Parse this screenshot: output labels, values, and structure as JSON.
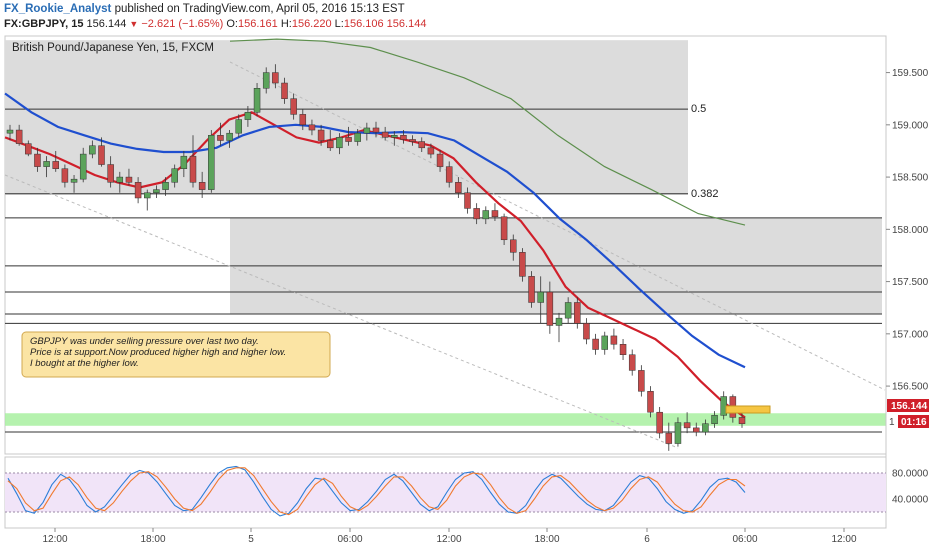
{
  "header": {
    "author": "FX_Rookie_Analyst",
    "published": "published on TradingView.com, April 05, 2016 15:13 EST",
    "symbol": "FX:GBPJPY, 15",
    "last": "156.144",
    "change": "−2.621 (−1.65%)",
    "o_label": "O:",
    "o": "156.161",
    "h_label": "H:",
    "h": "156.220",
    "l_label": "L:",
    "l": "156.106",
    "c": "156.144"
  },
  "chart_data": [
    {
      "type": "line",
      "title": "British Pound/Japanese Yen, 15, FXCM",
      "y_axis": {
        "range": [
          155.85,
          159.85
        ],
        "ticks": [
          "159.500",
          "159.000",
          "158.500",
          "158.000",
          "157.500",
          "157.000",
          "156.500"
        ],
        "tick_values": [
          159.5,
          159.0,
          158.5,
          158.0,
          157.5,
          157.0,
          156.5
        ]
      },
      "x_axis": {
        "ticks": [
          "12:00",
          "18:00",
          "5",
          "06:00",
          "12:00",
          "18:00",
          "6",
          "06:00",
          "12:00"
        ]
      },
      "last_price_label": "156.144",
      "countdown_label": "01:16",
      "partial_axis_label": "1",
      "fib_levels": [
        {
          "label": "0.5",
          "value": 159.15
        },
        {
          "label": "0.382",
          "value": 158.34
        }
      ],
      "zones": [
        {
          "top": 159.81,
          "bottom": 158.33
        },
        {
          "top": 158.11,
          "bottom": 157.19
        },
        {
          "top": 157.65,
          "bottom": 157.4
        }
      ],
      "support_band": {
        "top": 156.24,
        "bottom": 156.12
      },
      "horizontal_levels": [
        159.15,
        158.34,
        158.11,
        157.65,
        157.4,
        157.19,
        157.1,
        156.06
      ],
      "annotation": [
        "GBPJPY was under selling pressure over last two day.",
        "Price is at support.Now produced higher high and higher low.",
        "I bought at the higher low."
      ],
      "colors": {
        "candle_up": "#5ba35b",
        "candle_down": "#c84a4a",
        "ma_fast": "#d01f2a",
        "ma_slow": "#1f4fcf",
        "ma_long": "#5d8f4d",
        "zone": "#dcdcdc",
        "support": "#a8f0a0",
        "annotation_bg": "#fbe4a4"
      },
      "series": [
        {
          "color": "#d01f2a",
          "values": [
            158.88,
            158.8,
            158.72,
            158.62,
            158.52,
            158.45,
            158.4,
            158.45,
            158.62,
            158.85,
            159.05,
            159.12,
            159.0,
            158.88,
            158.83,
            158.88,
            158.95,
            158.9,
            158.85,
            158.8,
            158.68,
            158.45,
            158.25,
            158.08,
            157.8,
            157.45,
            157.25,
            157.15,
            157.05,
            156.95,
            156.78,
            156.55,
            156.35,
            156.2
          ]
        },
        {
          "color": "#1f4fcf",
          "values": [
            159.3,
            159.12,
            158.98,
            158.9,
            158.82,
            158.77,
            158.74,
            158.74,
            158.78,
            158.9,
            158.98,
            159.0,
            158.98,
            158.93,
            158.92,
            158.93,
            158.92,
            158.85,
            158.7,
            158.55,
            158.35,
            158.1,
            157.9,
            157.67,
            157.43,
            157.2,
            156.98,
            156.8,
            156.68
          ]
        },
        {
          "color": "#5d8f4d",
          "values": [
            159.8,
            159.82,
            159.8,
            159.74,
            159.6,
            159.45,
            159.25,
            158.9,
            158.6,
            158.38,
            158.15,
            158.04
          ]
        }
      ],
      "candles": [
        [
          158.92,
          159.0,
          158.85,
          158.95
        ],
        [
          158.95,
          159.0,
          158.8,
          158.82
        ],
        [
          158.82,
          158.85,
          158.7,
          158.72
        ],
        [
          158.72,
          158.78,
          158.55,
          158.6
        ],
        [
          158.6,
          158.7,
          158.5,
          158.65
        ],
        [
          158.65,
          158.75,
          158.55,
          158.58
        ],
        [
          158.58,
          158.62,
          158.4,
          158.45
        ],
        [
          158.45,
          158.52,
          158.35,
          158.48
        ],
        [
          158.48,
          158.78,
          158.45,
          158.72
        ],
        [
          158.72,
          158.85,
          158.68,
          158.8
        ],
        [
          158.8,
          158.88,
          158.6,
          158.62
        ],
        [
          158.62,
          158.7,
          158.4,
          158.45
        ],
        [
          158.45,
          158.55,
          158.35,
          158.5
        ],
        [
          158.5,
          158.58,
          158.42,
          158.45
        ],
        [
          158.45,
          158.5,
          158.25,
          158.3
        ],
        [
          158.3,
          158.38,
          158.18,
          158.35
        ],
        [
          158.35,
          158.42,
          158.3,
          158.38
        ],
        [
          158.38,
          158.5,
          158.32,
          158.45
        ],
        [
          158.45,
          158.62,
          158.4,
          158.58
        ],
        [
          158.58,
          158.75,
          158.5,
          158.7
        ],
        [
          158.7,
          158.9,
          158.4,
          158.45
        ],
        [
          158.45,
          158.55,
          158.3,
          158.38
        ],
        [
          158.38,
          158.95,
          158.35,
          158.9
        ],
        [
          158.9,
          159.02,
          158.8,
          158.85
        ],
        [
          158.85,
          158.95,
          158.78,
          158.92
        ],
        [
          158.92,
          159.1,
          158.88,
          159.05
        ],
        [
          159.05,
          159.18,
          158.98,
          159.12
        ],
        [
          159.12,
          159.4,
          159.08,
          159.35
        ],
        [
          159.35,
          159.55,
          159.3,
          159.5
        ],
        [
          159.5,
          159.58,
          159.35,
          159.4
        ],
        [
          159.4,
          159.45,
          159.2,
          159.25
        ],
        [
          159.25,
          159.3,
          159.05,
          159.1
        ],
        [
          159.1,
          159.15,
          158.95,
          159.0
        ],
        [
          159.0,
          159.05,
          158.9,
          158.95
        ],
        [
          158.95,
          159.0,
          158.8,
          158.85
        ],
        [
          158.85,
          158.95,
          158.75,
          158.78
        ],
        [
          158.78,
          158.92,
          158.72,
          158.88
        ],
        [
          158.88,
          158.98,
          158.8,
          158.84
        ],
        [
          158.84,
          158.96,
          158.8,
          158.92
        ],
        [
          158.92,
          159.02,
          158.85,
          158.97
        ],
        [
          158.97,
          159.03,
          158.88,
          158.93
        ],
        [
          158.93,
          158.98,
          158.85,
          158.88
        ],
        [
          158.88,
          158.94,
          158.8,
          158.9
        ],
        [
          158.9,
          158.95,
          158.82,
          158.86
        ],
        [
          158.86,
          158.9,
          158.8,
          158.84
        ],
        [
          158.84,
          158.88,
          158.74,
          158.78
        ],
        [
          158.78,
          158.82,
          158.68,
          158.72
        ],
        [
          158.72,
          158.76,
          158.55,
          158.6
        ],
        [
          158.6,
          158.65,
          158.4,
          158.45
        ],
        [
          158.45,
          158.5,
          158.3,
          158.35
        ],
        [
          158.35,
          158.4,
          158.15,
          158.2
        ],
        [
          158.2,
          158.25,
          158.05,
          158.1
        ],
        [
          158.1,
          158.22,
          158.05,
          158.18
        ],
        [
          158.18,
          158.25,
          158.08,
          158.12
        ],
        [
          158.12,
          158.15,
          157.85,
          157.9
        ],
        [
          157.9,
          157.95,
          157.7,
          157.78
        ],
        [
          157.78,
          157.82,
          157.5,
          157.55
        ],
        [
          157.55,
          157.6,
          157.25,
          157.3
        ],
        [
          157.3,
          157.55,
          157.1,
          157.4
        ],
        [
          157.4,
          157.5,
          157.0,
          157.08
        ],
        [
          157.08,
          157.2,
          156.92,
          157.15
        ],
        [
          157.15,
          157.35,
          157.1,
          157.3
        ],
        [
          157.3,
          157.35,
          157.05,
          157.1
        ],
        [
          157.1,
          157.15,
          156.9,
          156.95
        ],
        [
          156.95,
          157.0,
          156.8,
          156.85
        ],
        [
          156.85,
          157.02,
          156.8,
          156.98
        ],
        [
          156.98,
          157.05,
          156.85,
          156.9
        ],
        [
          156.9,
          156.95,
          156.75,
          156.8
        ],
        [
          156.8,
          156.85,
          156.6,
          156.65
        ],
        [
          156.65,
          156.7,
          156.4,
          156.45
        ],
        [
          156.45,
          156.5,
          156.2,
          156.25
        ],
        [
          156.25,
          156.3,
          156.0,
          156.05
        ],
        [
          156.05,
          156.15,
          155.88,
          155.95
        ],
        [
          155.95,
          156.2,
          155.92,
          156.15
        ],
        [
          156.15,
          156.25,
          156.05,
          156.1
        ],
        [
          156.1,
          156.15,
          156.02,
          156.06
        ],
        [
          156.06,
          156.18,
          156.03,
          156.14
        ],
        [
          156.14,
          156.26,
          156.1,
          156.22
        ],
        [
          156.22,
          156.45,
          156.18,
          156.4
        ],
        [
          156.4,
          156.42,
          156.15,
          156.2
        ],
        [
          156.2,
          156.24,
          156.1,
          156.14
        ]
      ]
    },
    {
      "type": "line",
      "y_axis": {
        "ticks": [
          "80.0000",
          "40.0000"
        ],
        "tick_values": [
          80,
          40
        ],
        "range": [
          0,
          100
        ]
      },
      "band": [
        20,
        80
      ],
      "series": [
        {
          "color": "#2d7fd8",
          "values": [
            72,
            48,
            22,
            18,
            35,
            62,
            78,
            70,
            52,
            30,
            20,
            28,
            45,
            62,
            78,
            84,
            80,
            66,
            48,
            30,
            22,
            24,
            42,
            62,
            80,
            88,
            90,
            85,
            66,
            44,
            24,
            14,
            18,
            34,
            56,
            72,
            70,
            52,
            34,
            22,
            24,
            36,
            52,
            70,
            78,
            68,
            50,
            32,
            22,
            28,
            50,
            70,
            80,
            82,
            70,
            50,
            32,
            20,
            18,
            30,
            52,
            70,
            78,
            72,
            58,
            44,
            32,
            24,
            22,
            30,
            48,
            66,
            76,
            72,
            56,
            36,
            24,
            18,
            22,
            38,
            58,
            70,
            72,
            66,
            50
          ]
        },
        {
          "color": "#f07a30",
          "values": [
            68,
            56,
            34,
            22,
            26,
            48,
            68,
            74,
            62,
            42,
            26,
            22,
            34,
            52,
            68,
            80,
            82,
            74,
            58,
            40,
            26,
            22,
            32,
            50,
            70,
            84,
            88,
            88,
            76,
            56,
            36,
            20,
            16,
            24,
            44,
            62,
            72,
            64,
            44,
            28,
            22,
            30,
            44,
            60,
            74,
            74,
            60,
            42,
            28,
            24,
            38,
            60,
            74,
            80,
            78,
            62,
            42,
            26,
            18,
            22,
            40,
            60,
            74,
            76,
            66,
            52,
            38,
            28,
            22,
            26,
            38,
            56,
            70,
            74,
            66,
            48,
            32,
            22,
            20,
            28,
            46,
            62,
            70,
            70,
            60
          ]
        }
      ]
    }
  ]
}
